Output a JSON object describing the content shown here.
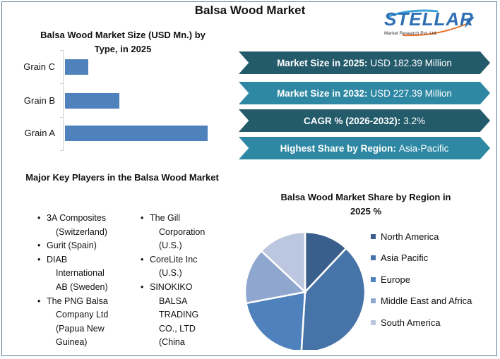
{
  "title": "Balsa Wood Market",
  "logo": {
    "name": "STELLAR",
    "tagline": "Market Research Pvt. Ltd.",
    "icon": "arrow-swoosh-icon"
  },
  "bar_chart": {
    "title_line1": "Balsa Wood Market Size (USD Mn.) by",
    "title_line2": "Type, in 2025",
    "labels": [
      "Grain C",
      "Grain B",
      "Grain A"
    ],
    "bar_color": "#4f81bd"
  },
  "banners": [
    {
      "label": "Market Size in 2025:",
      "value": "USD 182.39 Million",
      "color": "#245b6b"
    },
    {
      "label": "Market Size in 2032:",
      "value": "USD 227.39 Million",
      "color": "#2e88a3"
    },
    {
      "label": "CAGR % (2026-2032):",
      "value": "3.2%",
      "color": "#245b6b"
    },
    {
      "label": "Highest Share by Region:",
      "value": "Asia-Pacific",
      "color": "#2e88a3"
    }
  ],
  "players": {
    "title": "Major Key Players in the Balsa Wood Market",
    "col1": [
      {
        "first": "3A Composites",
        "rest": [
          "(Switzerland)"
        ]
      },
      {
        "first": "Gurit (Spain)",
        "rest": []
      },
      {
        "first": "DIAB",
        "rest": [
          "International",
          "AB (Sweden)"
        ]
      },
      {
        "first": "The PNG Balsa",
        "rest": [
          "Company Ltd",
          "(Papua New",
          "Guinea)"
        ]
      }
    ],
    "col2": [
      {
        "first": "The Gill",
        "rest": [
          "Corporation",
          "(U.S.)"
        ]
      },
      {
        "first": "CoreLite Inc",
        "rest": [
          "(U.S.)"
        ]
      },
      {
        "first": "SINOKIKO",
        "rest": [
          "BALSA",
          "TRADING",
          "CO., LTD",
          "(China"
        ]
      }
    ]
  },
  "pie_chart": {
    "title_line1": "Balsa Wood Market Share by Region in",
    "title_line2": "2025 %",
    "legend": [
      "North America",
      "Asia Pacific",
      "Europe",
      "Middle East and Africa",
      "South America"
    ],
    "colors": [
      "#3b5f8c",
      "#4673a8",
      "#4f81bd",
      "#8fa7cf",
      "#bac7df"
    ]
  },
  "chart_data": [
    {
      "type": "bar",
      "orientation": "horizontal",
      "title": "Balsa Wood Market Size (USD Mn.) by Type, in 2025",
      "categories": [
        "Grain C",
        "Grain B",
        "Grain A"
      ],
      "values": [
        18,
        42,
        110
      ],
      "xlabel": "",
      "ylabel": "",
      "note": "No value axis shown; values estimated proportionally from bar lengths",
      "grid": false
    },
    {
      "type": "pie",
      "title": "Balsa Wood Market Share by Region in 2025 %",
      "categories": [
        "North America",
        "Asia Pacific",
        "Europe",
        "Middle East and Africa",
        "South America"
      ],
      "values": [
        12,
        39,
        21,
        15,
        13
      ],
      "legend_position": "right"
    }
  ]
}
